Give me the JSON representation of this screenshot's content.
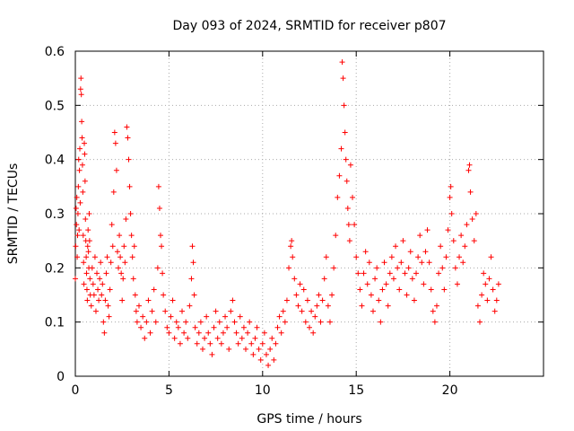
{
  "chart_data": {
    "type": "scatter",
    "title": "Day 093 of 2024, SRMTID for receiver p807",
    "xlabel": "GPS time / hours",
    "ylabel": "SRMTID / TECUs",
    "xlim": [
      0,
      25
    ],
    "ylim": [
      0,
      0.6
    ],
    "xticks": [
      0,
      5,
      10,
      15,
      20
    ],
    "xtick_labels": [
      "0",
      "5",
      "10",
      "15",
      "20"
    ],
    "yticks": [
      0,
      0.1,
      0.2,
      0.3,
      0.4,
      0.5,
      0.6
    ],
    "ytick_labels": [
      "0",
      "0.1",
      "0.2",
      "0.3",
      "0.4",
      "0.5",
      "0.6"
    ],
    "grid": true,
    "marker": "plus",
    "color": "#ff0000",
    "series": [
      {
        "name": "SRMTID",
        "points": [
          [
            0.0,
            0.18
          ],
          [
            0.02,
            0.24
          ],
          [
            0.04,
            0.31
          ],
          [
            0.06,
            0.28
          ],
          [
            0.08,
            0.33
          ],
          [
            0.1,
            0.22
          ],
          [
            0.12,
            0.26
          ],
          [
            0.14,
            0.3
          ],
          [
            0.16,
            0.35
          ],
          [
            0.18,
            0.4
          ],
          [
            0.2,
            0.27
          ],
          [
            0.22,
            0.38
          ],
          [
            0.24,
            0.42
          ],
          [
            0.26,
            0.32
          ],
          [
            0.28,
            0.53
          ],
          [
            0.3,
            0.55
          ],
          [
            0.32,
            0.52
          ],
          [
            0.34,
            0.47
          ],
          [
            0.36,
            0.44
          ],
          [
            0.38,
            0.39
          ],
          [
            0.4,
            0.34
          ],
          [
            0.42,
            0.26
          ],
          [
            0.44,
            0.21
          ],
          [
            0.46,
            0.17
          ],
          [
            0.48,
            0.43
          ],
          [
            0.5,
            0.41
          ],
          [
            0.52,
            0.36
          ],
          [
            0.54,
            0.29
          ],
          [
            0.56,
            0.25
          ],
          [
            0.58,
            0.22
          ],
          [
            0.6,
            0.19
          ],
          [
            0.62,
            0.16
          ],
          [
            0.64,
            0.14
          ],
          [
            0.66,
            0.24
          ],
          [
            0.68,
            0.27
          ],
          [
            0.7,
            0.23
          ],
          [
            0.72,
            0.2
          ],
          [
            0.74,
            0.3
          ],
          [
            0.76,
            0.25
          ],
          [
            0.78,
            0.18
          ],
          [
            0.8,
            0.15
          ],
          [
            0.85,
            0.13
          ],
          [
            0.9,
            0.2
          ],
          [
            0.95,
            0.17
          ],
          [
            1.0,
            0.15
          ],
          [
            1.05,
            0.22
          ],
          [
            1.1,
            0.12
          ],
          [
            1.15,
            0.19
          ],
          [
            1.2,
            0.16
          ],
          [
            1.25,
            0.14
          ],
          [
            1.3,
            0.18
          ],
          [
            1.35,
            0.21
          ],
          [
            1.4,
            0.15
          ],
          [
            1.45,
            0.17
          ],
          [
            1.5,
            0.1
          ],
          [
            1.55,
            0.08
          ],
          [
            1.6,
            0.14
          ],
          [
            1.65,
            0.19
          ],
          [
            1.7,
            0.22
          ],
          [
            1.75,
            0.13
          ],
          [
            1.8,
            0.11
          ],
          [
            1.85,
            0.16
          ],
          [
            1.9,
            0.21
          ],
          [
            1.95,
            0.28
          ],
          [
            2.0,
            0.24
          ],
          [
            2.05,
            0.34
          ],
          [
            2.1,
            0.45
          ],
          [
            2.15,
            0.43
          ],
          [
            2.2,
            0.38
          ],
          [
            2.25,
            0.23
          ],
          [
            2.3,
            0.2
          ],
          [
            2.35,
            0.26
          ],
          [
            2.4,
            0.22
          ],
          [
            2.45,
            0.19
          ],
          [
            2.5,
            0.14
          ],
          [
            2.55,
            0.18
          ],
          [
            2.6,
            0.24
          ],
          [
            2.65,
            0.21
          ],
          [
            2.7,
            0.29
          ],
          [
            2.75,
            0.46
          ],
          [
            2.8,
            0.44
          ],
          [
            2.85,
            0.4
          ],
          [
            2.9,
            0.35
          ],
          [
            2.95,
            0.3
          ],
          [
            3.0,
            0.26
          ],
          [
            3.05,
            0.22
          ],
          [
            3.1,
            0.18
          ],
          [
            3.15,
            0.24
          ],
          [
            3.2,
            0.15
          ],
          [
            3.25,
            0.12
          ],
          [
            3.3,
            0.1
          ],
          [
            3.4,
            0.13
          ],
          [
            3.5,
            0.09
          ],
          [
            3.6,
            0.11
          ],
          [
            3.7,
            0.07
          ],
          [
            3.8,
            0.1
          ],
          [
            3.9,
            0.14
          ],
          [
            4.0,
            0.08
          ],
          [
            4.1,
            0.12
          ],
          [
            4.2,
            0.16
          ],
          [
            4.3,
            0.1
          ],
          [
            4.4,
            0.2
          ],
          [
            4.45,
            0.35
          ],
          [
            4.5,
            0.31
          ],
          [
            4.55,
            0.26
          ],
          [
            4.6,
            0.24
          ],
          [
            4.65,
            0.19
          ],
          [
            4.7,
            0.15
          ],
          [
            4.8,
            0.12
          ],
          [
            4.9,
            0.09
          ],
          [
            5.0,
            0.08
          ],
          [
            5.1,
            0.11
          ],
          [
            5.2,
            0.14
          ],
          [
            5.3,
            0.07
          ],
          [
            5.4,
            0.1
          ],
          [
            5.5,
            0.09
          ],
          [
            5.6,
            0.06
          ],
          [
            5.7,
            0.12
          ],
          [
            5.8,
            0.08
          ],
          [
            5.9,
            0.1
          ],
          [
            6.0,
            0.07
          ],
          [
            6.1,
            0.13
          ],
          [
            6.2,
            0.18
          ],
          [
            6.25,
            0.24
          ],
          [
            6.3,
            0.21
          ],
          [
            6.35,
            0.15
          ],
          [
            6.4,
            0.09
          ],
          [
            6.5,
            0.06
          ],
          [
            6.6,
            0.08
          ],
          [
            6.7,
            0.1
          ],
          [
            6.8,
            0.05
          ],
          [
            6.9,
            0.07
          ],
          [
            7.0,
            0.11
          ],
          [
            7.1,
            0.08
          ],
          [
            7.2,
            0.06
          ],
          [
            7.3,
            0.04
          ],
          [
            7.4,
            0.09
          ],
          [
            7.5,
            0.12
          ],
          [
            7.6,
            0.07
          ],
          [
            7.7,
            0.1
          ],
          [
            7.8,
            0.06
          ],
          [
            7.9,
            0.08
          ],
          [
            8.0,
            0.11
          ],
          [
            8.1,
            0.09
          ],
          [
            8.2,
            0.05
          ],
          [
            8.3,
            0.12
          ],
          [
            8.4,
            0.14
          ],
          [
            8.5,
            0.1
          ],
          [
            8.6,
            0.08
          ],
          [
            8.7,
            0.06
          ],
          [
            8.8,
            0.11
          ],
          [
            8.9,
            0.07
          ],
          [
            9.0,
            0.09
          ],
          [
            9.1,
            0.05
          ],
          [
            9.2,
            0.08
          ],
          [
            9.3,
            0.1
          ],
          [
            9.4,
            0.06
          ],
          [
            9.5,
            0.04
          ],
          [
            9.6,
            0.07
          ],
          [
            9.7,
            0.09
          ],
          [
            9.8,
            0.05
          ],
          [
            9.9,
            0.03
          ],
          [
            10.0,
            0.06
          ],
          [
            10.1,
            0.08
          ],
          [
            10.2,
            0.04
          ],
          [
            10.3,
            0.02
          ],
          [
            10.4,
            0.05
          ],
          [
            10.5,
            0.07
          ],
          [
            10.6,
            0.03
          ],
          [
            10.7,
            0.06
          ],
          [
            10.8,
            0.09
          ],
          [
            10.9,
            0.11
          ],
          [
            11.0,
            0.08
          ],
          [
            11.1,
            0.12
          ],
          [
            11.2,
            0.1
          ],
          [
            11.3,
            0.14
          ],
          [
            11.4,
            0.2
          ],
          [
            11.5,
            0.24
          ],
          [
            11.55,
            0.25
          ],
          [
            11.6,
            0.22
          ],
          [
            11.7,
            0.18
          ],
          [
            11.8,
            0.15
          ],
          [
            11.9,
            0.13
          ],
          [
            12.0,
            0.17
          ],
          [
            12.1,
            0.12
          ],
          [
            12.2,
            0.16
          ],
          [
            12.3,
            0.1
          ],
          [
            12.4,
            0.14
          ],
          [
            12.5,
            0.09
          ],
          [
            12.6,
            0.12
          ],
          [
            12.7,
            0.08
          ],
          [
            12.8,
            0.11
          ],
          [
            12.9,
            0.13
          ],
          [
            13.0,
            0.15
          ],
          [
            13.1,
            0.1
          ],
          [
            13.2,
            0.14
          ],
          [
            13.3,
            0.18
          ],
          [
            13.4,
            0.22
          ],
          [
            13.5,
            0.13
          ],
          [
            13.6,
            0.1
          ],
          [
            13.7,
            0.15
          ],
          [
            13.8,
            0.2
          ],
          [
            13.9,
            0.26
          ],
          [
            14.0,
            0.33
          ],
          [
            14.1,
            0.37
          ],
          [
            14.2,
            0.42
          ],
          [
            14.25,
            0.58
          ],
          [
            14.3,
            0.55
          ],
          [
            14.35,
            0.5
          ],
          [
            14.4,
            0.45
          ],
          [
            14.45,
            0.4
          ],
          [
            14.5,
            0.36
          ],
          [
            14.55,
            0.31
          ],
          [
            14.6,
            0.28
          ],
          [
            14.65,
            0.25
          ],
          [
            14.7,
            0.39
          ],
          [
            14.8,
            0.33
          ],
          [
            14.9,
            0.28
          ],
          [
            15.0,
            0.22
          ],
          [
            15.1,
            0.19
          ],
          [
            15.2,
            0.16
          ],
          [
            15.3,
            0.13
          ],
          [
            15.4,
            0.19
          ],
          [
            15.5,
            0.23
          ],
          [
            15.6,
            0.17
          ],
          [
            15.7,
            0.21
          ],
          [
            15.8,
            0.15
          ],
          [
            15.9,
            0.12
          ],
          [
            16.0,
            0.18
          ],
          [
            16.1,
            0.2
          ],
          [
            16.2,
            0.14
          ],
          [
            16.3,
            0.1
          ],
          [
            16.4,
            0.16
          ],
          [
            16.5,
            0.21
          ],
          [
            16.6,
            0.17
          ],
          [
            16.7,
            0.13
          ],
          [
            16.8,
            0.19
          ],
          [
            16.9,
            0.22
          ],
          [
            17.0,
            0.18
          ],
          [
            17.1,
            0.24
          ],
          [
            17.2,
            0.2
          ],
          [
            17.3,
            0.16
          ],
          [
            17.4,
            0.21
          ],
          [
            17.5,
            0.25
          ],
          [
            17.6,
            0.19
          ],
          [
            17.7,
            0.15
          ],
          [
            17.8,
            0.2
          ],
          [
            17.9,
            0.23
          ],
          [
            18.0,
            0.18
          ],
          [
            18.1,
            0.14
          ],
          [
            18.2,
            0.19
          ],
          [
            18.3,
            0.22
          ],
          [
            18.4,
            0.26
          ],
          [
            18.5,
            0.21
          ],
          [
            18.6,
            0.17
          ],
          [
            18.7,
            0.23
          ],
          [
            18.8,
            0.27
          ],
          [
            18.9,
            0.21
          ],
          [
            19.0,
            0.16
          ],
          [
            19.1,
            0.12
          ],
          [
            19.2,
            0.1
          ],
          [
            19.3,
            0.13
          ],
          [
            19.4,
            0.19
          ],
          [
            19.5,
            0.24
          ],
          [
            19.6,
            0.2
          ],
          [
            19.7,
            0.16
          ],
          [
            19.8,
            0.22
          ],
          [
            19.9,
            0.27
          ],
          [
            20.0,
            0.33
          ],
          [
            20.05,
            0.35
          ],
          [
            20.1,
            0.3
          ],
          [
            20.2,
            0.25
          ],
          [
            20.3,
            0.2
          ],
          [
            20.4,
            0.17
          ],
          [
            20.5,
            0.22
          ],
          [
            20.6,
            0.26
          ],
          [
            20.7,
            0.21
          ],
          [
            20.8,
            0.24
          ],
          [
            20.9,
            0.28
          ],
          [
            21.0,
            0.38
          ],
          [
            21.05,
            0.39
          ],
          [
            21.1,
            0.34
          ],
          [
            21.2,
            0.29
          ],
          [
            21.3,
            0.25
          ],
          [
            21.4,
            0.3
          ],
          [
            21.5,
            0.13
          ],
          [
            21.6,
            0.1
          ],
          [
            21.7,
            0.15
          ],
          [
            21.8,
            0.19
          ],
          [
            21.9,
            0.17
          ],
          [
            22.0,
            0.14
          ],
          [
            22.1,
            0.18
          ],
          [
            22.2,
            0.22
          ],
          [
            22.3,
            0.16
          ],
          [
            22.4,
            0.12
          ],
          [
            22.5,
            0.14
          ],
          [
            22.6,
            0.17
          ]
        ]
      }
    ]
  }
}
